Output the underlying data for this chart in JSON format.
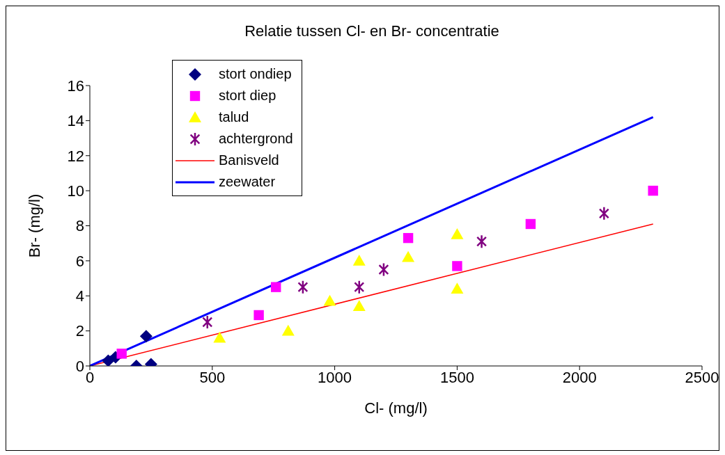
{
  "chart_data": {
    "type": "scatter",
    "title": "Relatie tussen Cl- en Br- concentratie",
    "xlabel": "Cl- (mg/l)",
    "ylabel": "Br- (mg/l)",
    "xlim": [
      0,
      2500
    ],
    "xticks": [
      0,
      500,
      1000,
      1500,
      2000,
      2500
    ],
    "ylim": [
      0,
      16
    ],
    "yticks": [
      0,
      2,
      4,
      6,
      8,
      10,
      12,
      14,
      16
    ],
    "legend": "top left",
    "series": [
      {
        "name": "stort ondiep",
        "marker": "diamond",
        "color": "#000080",
        "x": [
          75,
          105,
          230,
          190,
          250
        ],
        "values": [
          0.3,
          0.5,
          1.7,
          0,
          0.1
        ]
      },
      {
        "name": "stort diep",
        "marker": "square",
        "color": "#ff00ff",
        "x": [
          130,
          690,
          760,
          1300,
          1500,
          1800,
          2300
        ],
        "values": [
          0.7,
          2.9,
          4.5,
          7.3,
          5.7,
          8.1,
          10.0
        ]
      },
      {
        "name": "talud",
        "marker": "triangle",
        "color": "#ffff00",
        "x": [
          530,
          810,
          1100,
          980,
          1100,
          1300,
          1500,
          1500
        ],
        "values": [
          1.6,
          2.0,
          3.4,
          3.7,
          6.0,
          6.2,
          4.4,
          7.5
        ]
      },
      {
        "name": "achtergrond",
        "marker": "cross",
        "color": "#800080",
        "x": [
          480,
          870,
          1100,
          1200,
          1600,
          2100
        ],
        "values": [
          2.5,
          4.5,
          4.5,
          5.5,
          7.1,
          8.7
        ]
      },
      {
        "name": "Banisveld",
        "type": "line",
        "color": "#ff0000",
        "x": [
          0,
          2300
        ],
        "values": [
          0,
          8.1
        ]
      },
      {
        "name": "zeewater",
        "type": "line",
        "color": "#0000ff",
        "x": [
          0,
          2300
        ],
        "values": [
          0,
          14.2
        ]
      }
    ]
  }
}
